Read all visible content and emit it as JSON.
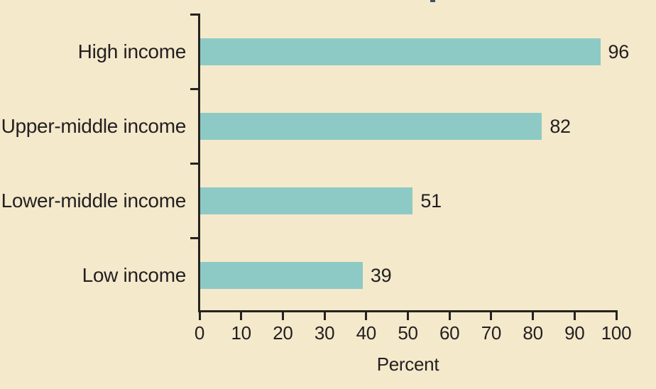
{
  "chart_data": {
    "type": "bar",
    "orientation": "horizontal",
    "categories": [
      "High income",
      "Upper-middle income",
      "Lower-middle income",
      "Low income"
    ],
    "values": [
      96,
      82,
      51,
      39
    ],
    "value_labels": [
      "96",
      "82",
      "51",
      "39"
    ],
    "xlabel": "Percent",
    "xlim": [
      0,
      100
    ],
    "xticks": [
      0,
      10,
      20,
      30,
      40,
      50,
      60,
      70,
      80,
      90,
      100
    ],
    "grid": false,
    "legend": null,
    "bar_color": "#8ECAC5",
    "background_color": "#F4E9CB",
    "axis_color": "#262220",
    "text_color": "#231F20"
  }
}
